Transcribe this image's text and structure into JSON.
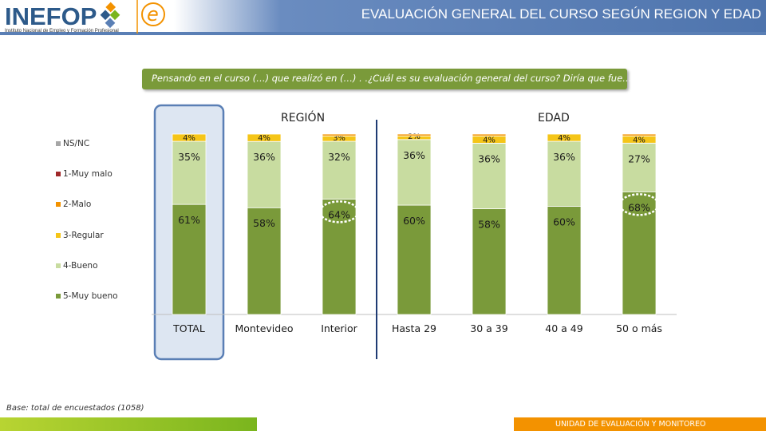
{
  "header": {
    "logo_text": "INEFOP",
    "logo_subtitle": "Instituto Nacional de Empleo y Formación Profesional",
    "title": "EVALUACIÓN GENERAL DEL CURSO SEGÚN REGION Y EDAD"
  },
  "question": "Pensando en el  curso (…) que realizó en (…) . .¿Cuál es su evaluación general del curso? Diría que fue…",
  "sections": {
    "region": "REGIÓN",
    "age": "EDAD"
  },
  "footer": {
    "base_note": "Base: total de encuestados (1058)",
    "unit": "UNIDAD DE EVALUACIÓN Y MONITOREO"
  },
  "colors": {
    "muy_bueno": "#7a9a3a",
    "bueno": "#c8dca0",
    "regular": "#f5c518",
    "malo": "#f39200",
    "muy_malo": "#a0282a",
    "nsnc": "#a6a6a6",
    "highlight_fill": "#dde6f2",
    "highlight_border": "#5a7fb5",
    "header_accent": "#5a7fb5",
    "footer_orange": "#f39200"
  },
  "chart_data": {
    "type": "bar",
    "stacked": true,
    "percent_scale": true,
    "categories": [
      "TOTAL",
      "Montevideo",
      "Interior",
      "Hasta 29",
      "30 a 39",
      "40 a 49",
      "50 o más"
    ],
    "legend": [
      "NS/NC",
      "1-Muy malo",
      "2-Malo",
      "3-Regular",
      "4-Bueno",
      "5-Muy bueno"
    ],
    "legend_position": "left",
    "series": [
      {
        "name": "5-Muy bueno",
        "values": [
          61,
          58,
          64,
          60,
          58,
          60,
          68
        ],
        "labels": [
          "61%",
          "58%",
          "64%",
          "60%",
          "58%",
          "60%",
          "68%"
        ]
      },
      {
        "name": "4-Bueno",
        "values": [
          35,
          36,
          32,
          36,
          36,
          36,
          27
        ],
        "labels": [
          "35%",
          "36%",
          "32%",
          "36%",
          "36%",
          "36%",
          "27%"
        ]
      },
      {
        "name": "3-Regular",
        "values": [
          4,
          4,
          3,
          2,
          4,
          4,
          4
        ],
        "labels": [
          "4%",
          "4%",
          "3%",
          "2%",
          "4%",
          "4%",
          "4%"
        ]
      },
      {
        "name": "2-Malo",
        "values": [
          0,
          0,
          1,
          1,
          1,
          0,
          1
        ]
      },
      {
        "name": "1-Muy malo",
        "values": [
          0,
          0,
          0,
          0,
          0,
          0,
          0
        ]
      },
      {
        "name": "NS/NC",
        "values": [
          0,
          0,
          0,
          0,
          0,
          0,
          0
        ]
      }
    ],
    "circled": [
      "Interior",
      "50 o más"
    ],
    "highlighted": [
      "TOTAL"
    ],
    "groups": [
      {
        "label": "REGIÓN",
        "categories": [
          "TOTAL",
          "Montevideo",
          "Interior"
        ]
      },
      {
        "label": "EDAD",
        "categories": [
          "Hasta 29",
          "30 a 39",
          "40 a 49",
          "50 o más"
        ]
      }
    ]
  }
}
